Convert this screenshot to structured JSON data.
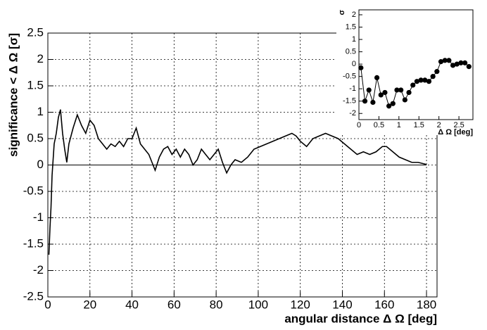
{
  "chart_data": [
    {
      "type": "line",
      "xlabel": "angular distance Δ Ω [deg]",
      "ylabel": "significance < Δ Ω [σ]",
      "x": [
        0.5,
        1,
        1.5,
        2,
        2.5,
        3,
        4,
        5,
        6,
        7,
        8,
        9,
        10,
        12,
        14,
        16,
        18,
        20,
        22,
        24,
        26,
        28,
        30,
        32,
        34,
        36,
        38,
        40,
        42,
        44,
        46,
        48,
        50,
        51,
        53,
        55,
        57,
        59,
        61,
        63,
        65,
        67,
        69,
        71,
        73,
        75,
        77,
        79,
        81,
        83,
        85,
        87,
        89,
        92,
        95,
        98,
        101,
        104,
        107,
        110,
        113,
        116,
        118,
        120,
        123,
        126,
        129,
        132,
        135,
        138,
        141,
        144,
        147,
        150,
        153,
        156,
        159,
        161,
        164,
        167,
        170,
        173,
        176,
        179,
        180
      ],
      "values": [
        -1.7,
        -1.2,
        -0.8,
        -0.2,
        0.1,
        0.4,
        0.6,
        0.9,
        1.05,
        0.6,
        0.3,
        0.05,
        0.4,
        0.7,
        0.95,
        0.75,
        0.6,
        0.85,
        0.75,
        0.5,
        0.4,
        0.3,
        0.4,
        0.35,
        0.45,
        0.35,
        0.5,
        0.5,
        0.7,
        0.4,
        0.3,
        0.2,
        0.0,
        -0.1,
        0.15,
        0.3,
        0.35,
        0.2,
        0.3,
        0.15,
        0.3,
        0.2,
        0.0,
        0.1,
        0.3,
        0.2,
        0.1,
        0.2,
        0.3,
        0.05,
        -0.15,
        0.0,
        0.1,
        0.05,
        0.15,
        0.3,
        0.35,
        0.4,
        0.45,
        0.5,
        0.55,
        0.6,
        0.55,
        0.45,
        0.35,
        0.5,
        0.55,
        0.6,
        0.55,
        0.5,
        0.4,
        0.3,
        0.2,
        0.25,
        0.2,
        0.25,
        0.35,
        0.35,
        0.25,
        0.15,
        0.1,
        0.05,
        0.05,
        0.02,
        0.01
      ],
      "color": "#000000",
      "xlim": [
        0,
        185
      ],
      "xticks": [
        0,
        20,
        40,
        60,
        80,
        100,
        120,
        140,
        160,
        180
      ],
      "ylim": [
        -2.5,
        2.5
      ],
      "yticks": [
        -2.5,
        -2,
        -1.5,
        -1,
        -0.5,
        0,
        0.5,
        1,
        1.5,
        2,
        2.5
      ],
      "grid": true
    },
    {
      "type": "line-markers",
      "xlabel": "Δ Ω [deg]",
      "ylabel": "σ",
      "x": [
        0.05,
        0.15,
        0.25,
        0.35,
        0.45,
        0.55,
        0.65,
        0.75,
        0.85,
        0.95,
        1.05,
        1.15,
        1.25,
        1.35,
        1.45,
        1.55,
        1.65,
        1.75,
        1.85,
        1.95,
        2.05,
        2.15,
        2.25,
        2.35,
        2.45,
        2.55,
        2.65,
        2.75
      ],
      "values": [
        -0.15,
        -1.5,
        -1.05,
        -1.55,
        -0.55,
        -1.25,
        -1.15,
        -1.7,
        -1.6,
        -1.05,
        -1.05,
        -1.45,
        -1.15,
        -0.85,
        -0.7,
        -0.65,
        -0.65,
        -0.7,
        -0.5,
        -0.3,
        0.1,
        0.15,
        0.15,
        -0.05,
        0.0,
        0.05,
        0.05,
        -0.1
      ],
      "color": "#000000",
      "xlim": [
        0,
        2.85
      ],
      "xticks": [
        0,
        0.5,
        1,
        1.5,
        2,
        2.5
      ],
      "ylim": [
        -2.25,
        2.2
      ],
      "yticks": [
        -2,
        -1.5,
        -1,
        -0.5,
        0,
        0.5,
        1,
        1.5,
        2
      ],
      "grid": false
    }
  ]
}
